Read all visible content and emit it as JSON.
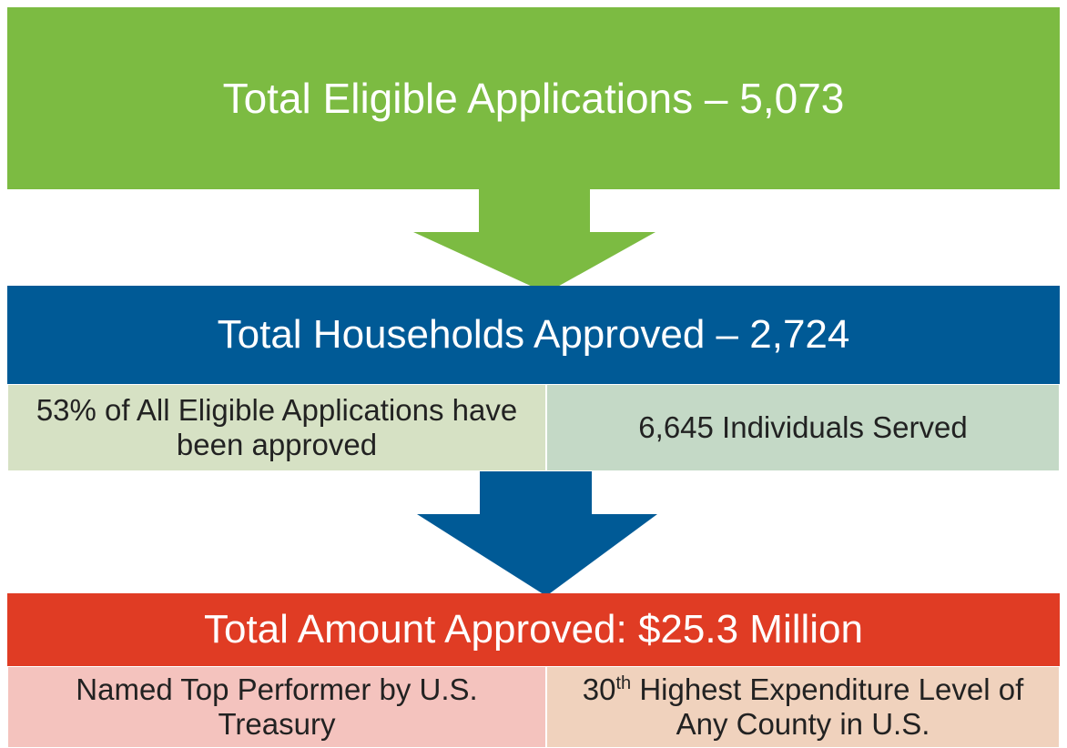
{
  "steps": [
    {
      "title": "Total Eligible Applications – 5,073"
    },
    {
      "title": "Total Households Approved – 2,724",
      "details": [
        "53% of All Eligible Applications have been approved",
        "6,645 Individuals Served"
      ]
    },
    {
      "title": "Total Amount Approved: $25.3 Million",
      "details": [
        "Named Top Performer by U.S. Treasury"
      ],
      "ranking": {
        "number": "30",
        "suffix": "th",
        "text": "Highest Expenditure Level of Any County in U.S."
      }
    }
  ]
}
